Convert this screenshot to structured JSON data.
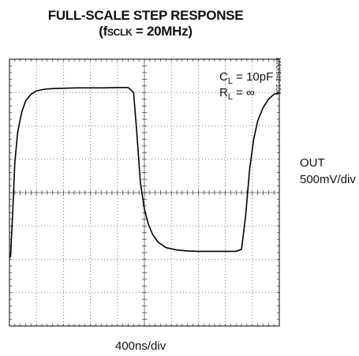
{
  "chart_data": {
    "type": "line",
    "title": "FULL-SCALE STEP RESPONSE",
    "subtitle": {
      "prefix": "(f",
      "subscript": "SCLK",
      "suffix": " = 20MHz)"
    },
    "xlabel": "400ns/div",
    "ylabel": {
      "line1": "OUT",
      "line2": "500mV/div"
    },
    "annotations": {
      "cl": {
        "prefix": "C",
        "subscript": "L",
        "suffix": " = 10pF"
      },
      "rl": {
        "prefix": "R",
        "subscript": "L",
        "suffix": " = ∞"
      }
    },
    "figure_code": "MAX542-10A",
    "grid": true,
    "xlim": [
      0,
      10
    ],
    "ylim": [
      0,
      8
    ],
    "series": [
      {
        "x": [
          0,
          0.04,
          0.12,
          0.2,
          0.3,
          0.45,
          0.6,
          0.8,
          1.0,
          1.3,
          1.6,
          2.0,
          2.5,
          3.0,
          3.5,
          4.0,
          4.4,
          4.6,
          4.72,
          4.85,
          5.0,
          5.15,
          5.3,
          5.5,
          5.8,
          6.2,
          6.6,
          7.0,
          7.5,
          8.0,
          8.4,
          8.6,
          8.75,
          8.9,
          9.05,
          9.2,
          9.4,
          9.6,
          9.8,
          10
        ],
        "y": [
          2.05,
          2.1,
          3.4,
          4.9,
          5.8,
          6.4,
          6.75,
          6.95,
          7.05,
          7.1,
          7.12,
          7.13,
          7.14,
          7.14,
          7.14,
          7.15,
          7.15,
          7.0,
          5.8,
          4.3,
          3.5,
          3.05,
          2.75,
          2.52,
          2.35,
          2.28,
          2.25,
          2.24,
          2.24,
          2.24,
          2.24,
          2.3,
          3.3,
          4.7,
          5.6,
          6.15,
          6.55,
          6.8,
          6.95,
          7.0
        ]
      }
    ]
  }
}
